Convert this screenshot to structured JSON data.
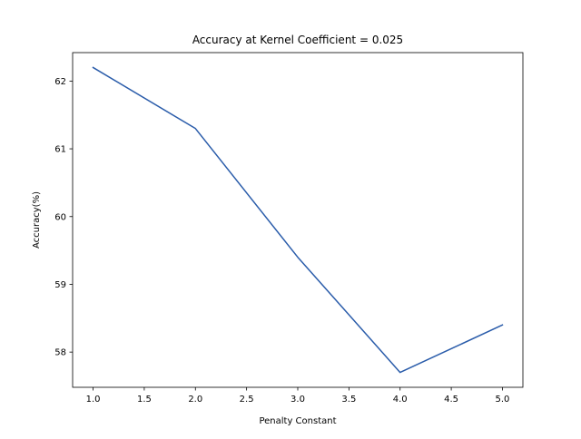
{
  "chart_data": {
    "type": "line",
    "title": "Accuracy at Kernel Coefficient = 0.025",
    "xlabel": "Penalty Constant",
    "ylabel": "Accuracy(%)",
    "xlim": [
      0.8,
      5.2
    ],
    "ylim": [
      57.48,
      62.42
    ],
    "x_ticks": [
      1.0,
      1.5,
      2.0,
      2.5,
      3.0,
      3.5,
      4.0,
      4.5,
      5.0
    ],
    "x_tick_labels": [
      "1.0",
      "1.5",
      "2.0",
      "2.5",
      "3.0",
      "3.5",
      "4.0",
      "4.5",
      "5.0"
    ],
    "y_ticks": [
      58,
      59,
      60,
      61,
      62
    ],
    "y_tick_labels": [
      "58",
      "59",
      "60",
      "61",
      "62"
    ],
    "grid": false,
    "series": [
      {
        "color": "#2a5caa",
        "x": [
          1,
          2,
          3,
          4,
          5
        ],
        "y": [
          62.2,
          61.3,
          59.4,
          57.7,
          58.4
        ]
      }
    ]
  }
}
